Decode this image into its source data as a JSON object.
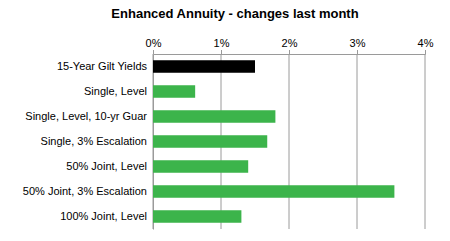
{
  "chart_data": {
    "type": "bar",
    "title": "Enhanced Annuity - changes last month",
    "orientation": "horizontal",
    "categories": [
      "15-Year Gilt Yields",
      "Single, Level",
      "Single, Level, 10-yr Guar",
      "Single, 3% Escalation",
      "50% Joint, Level",
      "50% Joint, 3% Escalation",
      "100% Joint, Level"
    ],
    "values": [
      1.5,
      0.62,
      1.8,
      1.68,
      1.4,
      3.55,
      1.3
    ],
    "colors": [
      "#000000",
      "#3cb44b",
      "#3cb44b",
      "#3cb44b",
      "#3cb44b",
      "#3cb44b",
      "#3cb44b"
    ],
    "xlim": [
      0,
      4
    ],
    "xticks": [
      {
        "value": 0,
        "label": "0%"
      },
      {
        "value": 1,
        "label": "1%"
      },
      {
        "value": 2,
        "label": "2%"
      },
      {
        "value": 3,
        "label": "3%"
      },
      {
        "value": 4,
        "label": "4%"
      }
    ],
    "grid": true
  }
}
